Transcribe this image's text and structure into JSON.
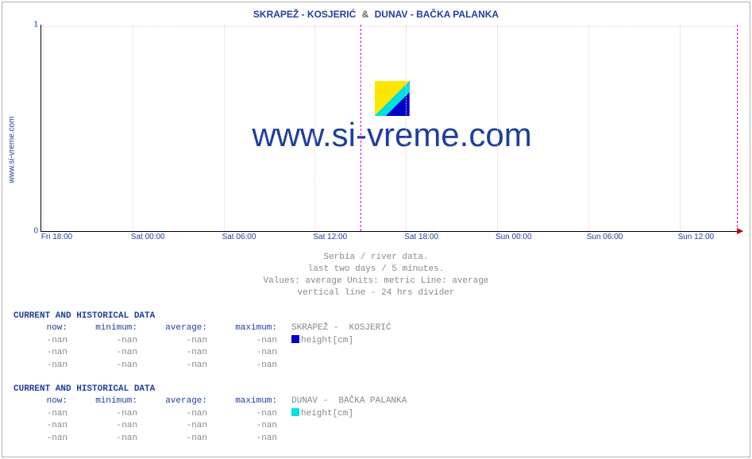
{
  "site_vertical": "www.si-vreme.com",
  "title": {
    "series_a": "SKRAPEŽ -  KOSJERIĆ",
    "amp": "&",
    "series_b": "DUNAV -  BAČKA PALANKA",
    "color_a": "#1e3e9e",
    "color_b": "#1e3e9e",
    "fontsize": 12
  },
  "chart": {
    "type": "line",
    "background_color": "#ffffff",
    "grid_color": "#f6c9d8",
    "divider_color": "#d600d6",
    "axis_color": "#000000",
    "arrow_color": "#c00000",
    "xlim_labels": [
      "Fri 18:00",
      "Sat 00:00",
      "Sat 06:00",
      "Sat 12:00",
      "Sat 18:00",
      "Sun 00:00",
      "Sun 06:00",
      "Sun 12:00"
    ],
    "xticks_pct": [
      0.2,
      13.0,
      26.0,
      39.0,
      52.0,
      65.0,
      78.0,
      91.0
    ],
    "divider_between_idx": [
      3,
      4
    ],
    "ylim": [
      0,
      1
    ],
    "yticks": [
      0,
      1
    ],
    "label_fontsize": 10
  },
  "watermark": {
    "text": "www.si-vreme.com",
    "color": "#1e3e9e",
    "fontsize": 42,
    "logo": {
      "colors": {
        "yellow": "#ffe600",
        "cyan": "#00e0e0",
        "blue": "#0000c8"
      }
    }
  },
  "subcaption": {
    "line1": "Serbia / river data.",
    "line2": "last two days / 5 minutes.",
    "line3": "Values: average  Units: metric  Line: average",
    "line4": "vertical line - 24 hrs  divider",
    "color": "#888888"
  },
  "sections": [
    {
      "header": "CURRENT AND HISTORICAL DATA",
      "columns": [
        "now:",
        "minimum:",
        "average:",
        "maximum:"
      ],
      "series_name": "SKRAPEŽ -  KOSJERIĆ",
      "swatch_color": "#0000c8",
      "unit_label": "height[cm]",
      "rows": [
        [
          "-nan",
          "-nan",
          "-nan",
          "-nan"
        ],
        [
          "-nan",
          "-nan",
          "-nan",
          "-nan"
        ],
        [
          "-nan",
          "-nan",
          "-nan",
          "-nan"
        ]
      ]
    },
    {
      "header": "CURRENT AND HISTORICAL DATA",
      "columns": [
        "now:",
        "minimum:",
        "average:",
        "maximum:"
      ],
      "series_name": "DUNAV -  BAČKA PALANKA",
      "swatch_color": "#00e0e0",
      "unit_label": "height[cm]",
      "rows": [
        [
          "-nan",
          "-nan",
          "-nan",
          "-nan"
        ],
        [
          "-nan",
          "-nan",
          "-nan",
          "-nan"
        ],
        [
          "-nan",
          "-nan",
          "-nan",
          "-nan"
        ]
      ]
    }
  ]
}
